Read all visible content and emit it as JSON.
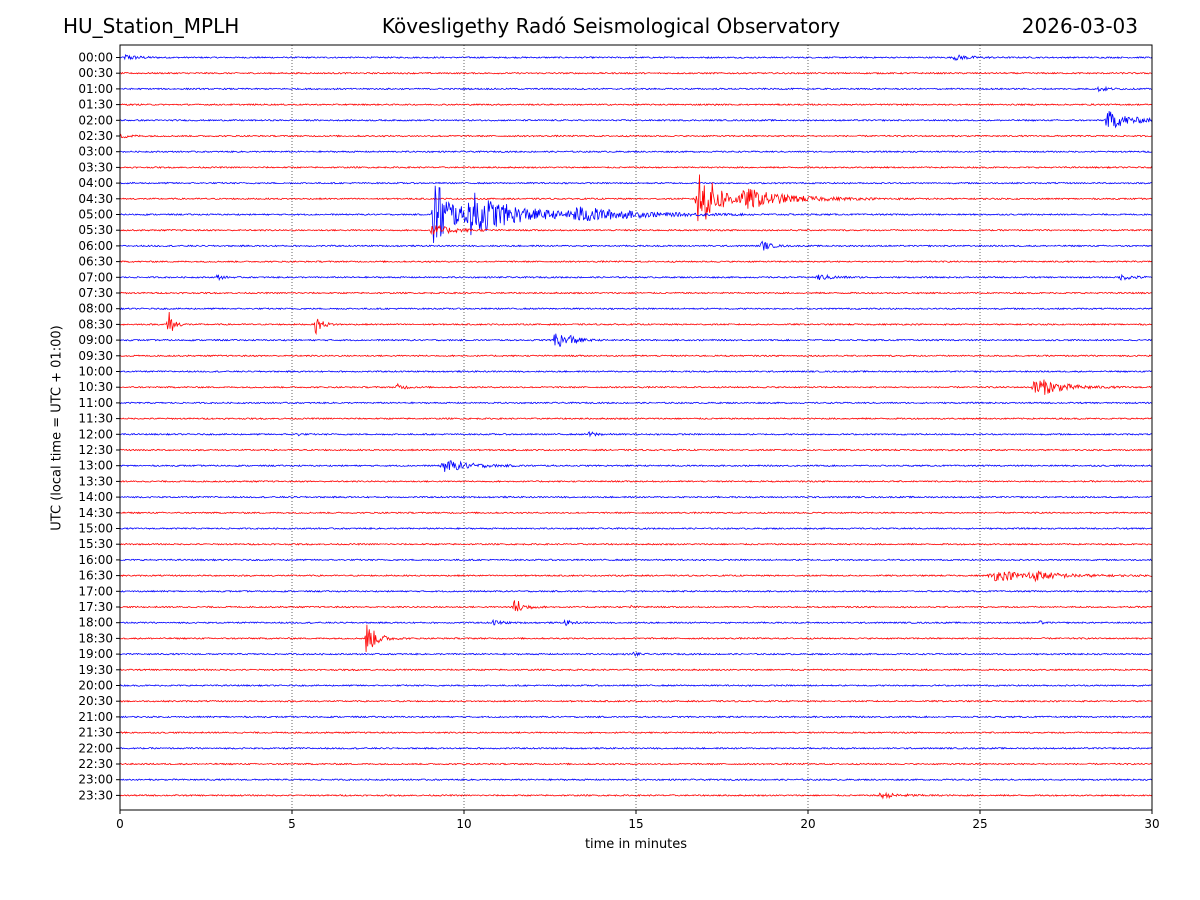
{
  "header": {
    "station": "HU_Station_MPLH",
    "observatory": "Kövesligethy Radó Seismological Observatory",
    "date": "2026-03-03"
  },
  "colors": {
    "even_trace": "#0000ff",
    "odd_trace": "#ff0000",
    "grid": "#000000"
  },
  "chart_data": {
    "type": "helicorder",
    "xlabel": "time in minutes",
    "ylabel": "UTC (local time = UTC + 01:00)",
    "xlim": [
      0,
      30
    ],
    "x_ticks": [
      0,
      5,
      10,
      15,
      20,
      25,
      30
    ],
    "rows": [
      "00:00",
      "00:30",
      "01:00",
      "01:30",
      "02:00",
      "02:30",
      "03:00",
      "03:30",
      "04:00",
      "04:30",
      "05:00",
      "05:30",
      "06:00",
      "06:30",
      "07:00",
      "07:30",
      "08:00",
      "08:30",
      "09:00",
      "09:30",
      "10:00",
      "10:30",
      "11:00",
      "11:30",
      "12:00",
      "12:30",
      "13:00",
      "13:30",
      "14:00",
      "14:30",
      "15:00",
      "15:30",
      "16:00",
      "16:30",
      "17:00",
      "17:30",
      "18:00",
      "18:30",
      "19:00",
      "19:30",
      "20:00",
      "20:30",
      "21:00",
      "21:30",
      "22:00",
      "22:30",
      "23:00",
      "23:30"
    ],
    "noise_amplitude": 0.09,
    "events": [
      {
        "row": 0,
        "t": 0.1,
        "amp": 0.35,
        "dur": 0.8
      },
      {
        "row": 0,
        "t": 24.2,
        "amp": 0.3,
        "dur": 1.0
      },
      {
        "row": 2,
        "t": 28.4,
        "amp": 0.3,
        "dur": 0.6
      },
      {
        "row": 4,
        "t": 28.6,
        "amp": 1.2,
        "dur": 1.4
      },
      {
        "row": 5,
        "t": 0.0,
        "amp": 0.25,
        "dur": 0.6
      },
      {
        "row": 10,
        "t": 9.05,
        "amp": 5.5,
        "dur": 1.0
      },
      {
        "row": 10,
        "t": 10.0,
        "amp": 2.5,
        "dur": 3.0
      },
      {
        "row": 10,
        "t": 13.0,
        "amp": 0.8,
        "dur": 3.5
      },
      {
        "row": 9,
        "t": 16.7,
        "amp": 4.0,
        "dur": 1.3
      },
      {
        "row": 9,
        "t": 18.0,
        "amp": 1.0,
        "dur": 2.8
      },
      {
        "row": 11,
        "t": 9.0,
        "amp": 0.7,
        "dur": 1.2
      },
      {
        "row": 12,
        "t": 18.6,
        "amp": 0.7,
        "dur": 0.5
      },
      {
        "row": 14,
        "t": 2.8,
        "amp": 0.4,
        "dur": 0.3
      },
      {
        "row": 14,
        "t": 20.2,
        "amp": 0.35,
        "dur": 1.0
      },
      {
        "row": 14,
        "t": 29.0,
        "amp": 0.3,
        "dur": 1.0
      },
      {
        "row": 17,
        "t": 1.35,
        "amp": 2.5,
        "dur": 0.3
      },
      {
        "row": 17,
        "t": 5.65,
        "amp": 1.2,
        "dur": 0.4
      },
      {
        "row": 18,
        "t": 12.6,
        "amp": 2.0,
        "dur": 0.4
      },
      {
        "row": 18,
        "t": 13.0,
        "amp": 0.6,
        "dur": 0.6
      },
      {
        "row": 21,
        "t": 8.0,
        "amp": 0.4,
        "dur": 0.5
      },
      {
        "row": 21,
        "t": 26.5,
        "amp": 1.3,
        "dur": 1.5
      },
      {
        "row": 24,
        "t": 5.1,
        "amp": 0.3,
        "dur": 0.2
      },
      {
        "row": 24,
        "t": 13.6,
        "amp": 0.35,
        "dur": 0.5
      },
      {
        "row": 26,
        "t": 9.3,
        "amp": 0.8,
        "dur": 1.5
      },
      {
        "row": 33,
        "t": 25.2,
        "amp": 0.6,
        "dur": 3.0
      },
      {
        "row": 33,
        "t": 26.4,
        "amp": 0.5,
        "dur": 1.0
      },
      {
        "row": 35,
        "t": 11.4,
        "amp": 1.4,
        "dur": 0.5
      },
      {
        "row": 35,
        "t": 14.8,
        "amp": 0.2,
        "dur": 0.3
      },
      {
        "row": 36,
        "t": 10.8,
        "amp": 0.3,
        "dur": 0.6
      },
      {
        "row": 36,
        "t": 12.9,
        "amp": 0.35,
        "dur": 0.4
      },
      {
        "row": 36,
        "t": 26.7,
        "amp": 0.3,
        "dur": 0.2
      },
      {
        "row": 37,
        "t": 7.1,
        "amp": 2.2,
        "dur": 0.6
      },
      {
        "row": 38,
        "t": 14.9,
        "amp": 0.3,
        "dur": 0.3
      },
      {
        "row": 47,
        "t": 22.0,
        "amp": 0.3,
        "dur": 1.4
      }
    ]
  }
}
